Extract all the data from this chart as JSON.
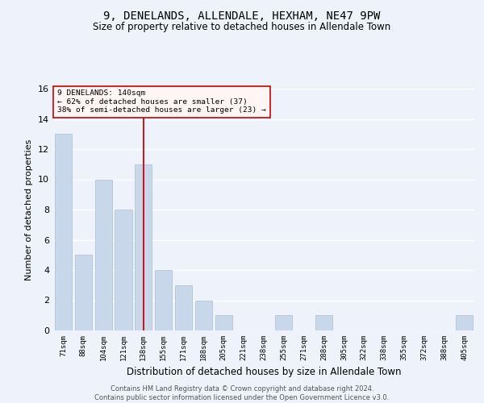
{
  "title": "9, DENELANDS, ALLENDALE, HEXHAM, NE47 9PW",
  "subtitle": "Size of property relative to detached houses in Allendale Town",
  "xlabel": "Distribution of detached houses by size in Allendale Town",
  "ylabel": "Number of detached properties",
  "categories": [
    "71sqm",
    "88sqm",
    "104sqm",
    "121sqm",
    "138sqm",
    "155sqm",
    "171sqm",
    "188sqm",
    "205sqm",
    "221sqm",
    "238sqm",
    "255sqm",
    "271sqm",
    "288sqm",
    "305sqm",
    "322sqm",
    "338sqm",
    "355sqm",
    "372sqm",
    "388sqm",
    "405sqm"
  ],
  "values": [
    13,
    5,
    10,
    8,
    11,
    4,
    3,
    2,
    1,
    0,
    0,
    1,
    0,
    1,
    0,
    0,
    0,
    0,
    0,
    0,
    1
  ],
  "bar_color": "#c8d8ea",
  "bar_edge_color": "#a8bfcf",
  "vline_index": 4,
  "vline_color": "#cc0000",
  "annotation_line1": "9 DENELANDS: 140sqm",
  "annotation_line2": "← 62% of detached houses are smaller (37)",
  "annotation_line3": "38% of semi-detached houses are larger (23) →",
  "annotation_box_facecolor": "#fff5f5",
  "annotation_box_edgecolor": "#cc0000",
  "ylim": [
    0,
    16
  ],
  "yticks": [
    0,
    2,
    4,
    6,
    8,
    10,
    12,
    14,
    16
  ],
  "background_color": "#eef2fb",
  "grid_color": "#ffffff",
  "title_fontsize": 10,
  "subtitle_fontsize": 8.5,
  "ylabel_fontsize": 8,
  "xlabel_fontsize": 8.5,
  "footer_line1": "Contains HM Land Registry data © Crown copyright and database right 2024.",
  "footer_line2": "Contains public sector information licensed under the Open Government Licence v3.0.",
  "footer_fontsize": 6
}
